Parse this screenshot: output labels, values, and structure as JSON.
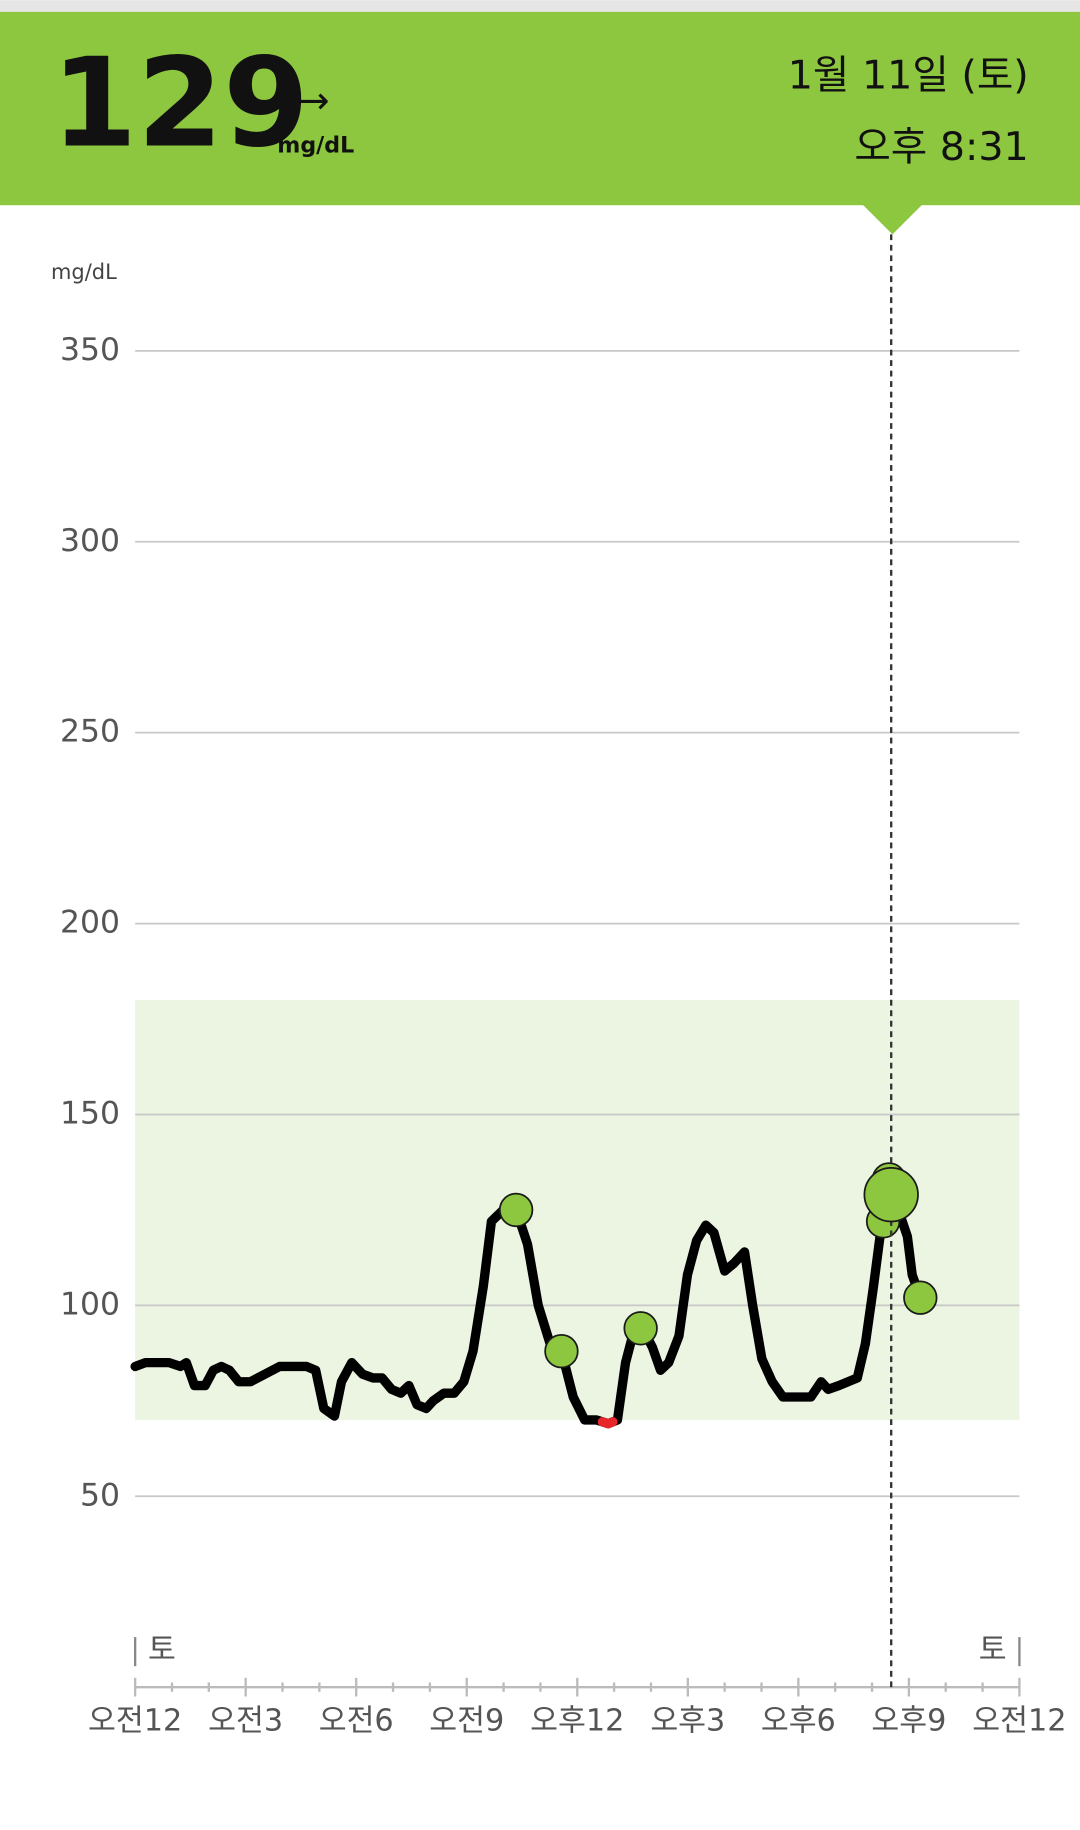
{
  "header": {
    "value": 129,
    "trend": "→",
    "unit": "mg/dL",
    "date": "1월 11일 (토)",
    "time": "오후 8:31"
  },
  "chart_data": {
    "type": "line",
    "ylabel": "mg/dL",
    "xlim": [
      0,
      24
    ],
    "xticks": [
      {
        "value": 0,
        "label": "오전12"
      },
      {
        "value": 3,
        "label": "오전3"
      },
      {
        "value": 6,
        "label": "오전6"
      },
      {
        "value": 9,
        "label": "오전9"
      },
      {
        "value": 12,
        "label": "오후12"
      },
      {
        "value": 15,
        "label": "오후3"
      },
      {
        "value": 18,
        "label": "오후6"
      },
      {
        "value": 21,
        "label": "오후9"
      },
      {
        "value": 24,
        "label": "오전12"
      }
    ],
    "day_labels": [
      "토",
      "토"
    ],
    "ylim": [
      0,
      350
    ],
    "yticks": [
      50,
      100,
      150,
      200,
      250,
      300,
      350
    ],
    "grid": true,
    "target_range": [
      70,
      180
    ],
    "target_color": "#ebf5e1",
    "low_color": "#e8262a",
    "current_x": 20.52,
    "series": [
      {
        "color": "#000000",
        "x": [
          0,
          0.28,
          0.92,
          1.23,
          1.39,
          1.61,
          1.9,
          2.12,
          2.34,
          2.56,
          2.81,
          3.13,
          3.92,
          4.65,
          4.9,
          5.12,
          5.41,
          5.6,
          5.88,
          6.17,
          6.45,
          6.7,
          6.96,
          7.21,
          7.43,
          7.65,
          7.9,
          8.09,
          8.38,
          8.66,
          8.92,
          9.17,
          9.45,
          9.67,
          9.99,
          10.34,
          10.65,
          10.94,
          11.26,
          11.57,
          11.89,
          12.2,
          12.52,
          12.84,
          13.09,
          13.31,
          13.5,
          13.72,
          14.04,
          14.26,
          14.48,
          14.76,
          14.99,
          15.24,
          15.49,
          15.71,
          16.0,
          16.25,
          16.54,
          16.76,
          17.01,
          17.29,
          17.58,
          17.86,
          18.34,
          18.62,
          18.81,
          19.1,
          19.6,
          19.82,
          20.04,
          20.27,
          20.46,
          20.68,
          20.96,
          21.09,
          21.31
        ],
        "values": [
          84,
          85,
          85,
          84,
          85,
          79,
          79,
          83,
          84,
          83,
          80,
          80,
          84,
          84,
          83,
          73,
          71,
          80,
          85,
          82,
          81,
          81,
          78,
          77,
          79,
          74,
          73,
          75,
          77,
          77,
          80,
          88,
          105,
          122,
          125,
          125,
          116,
          100,
          90,
          88,
          76,
          70,
          70,
          69,
          70,
          85,
          92,
          95,
          89,
          83,
          85,
          92,
          108,
          117,
          121,
          119,
          109,
          111,
          114,
          100,
          86,
          80,
          76,
          76,
          76,
          80,
          78,
          79,
          81,
          90,
          105,
          122,
          133,
          126,
          118,
          108,
          102
        ]
      },
      {
        "color": "#8dc63f",
        "x": [
          10.34,
          11.57,
          13.72,
          20.3,
          20.46,
          21.31
        ],
        "values": [
          125,
          88,
          94,
          122,
          133,
          102
        ]
      }
    ]
  }
}
